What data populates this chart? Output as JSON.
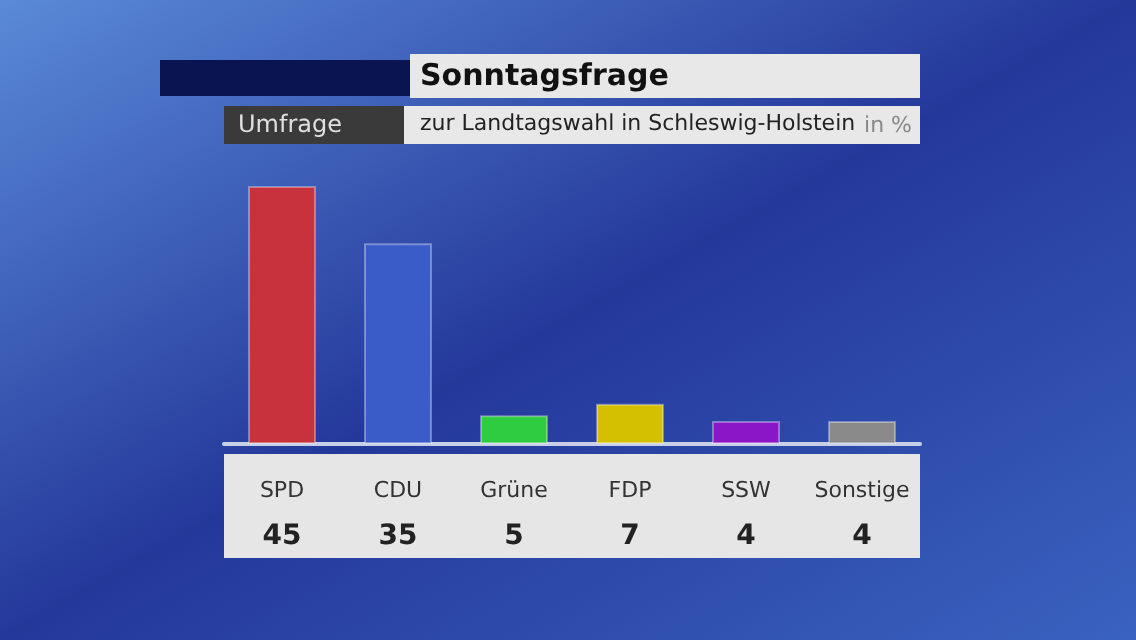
{
  "chart_data": {
    "type": "bar",
    "title": "Sonntagsfrage",
    "subtitle": "zur Landtagswahl in Schleswig-Holstein",
    "ylabel": "in %",
    "annotations": [
      "Umfrage"
    ],
    "categories": [
      "SPD",
      "CDU",
      "Grüne",
      "FDP",
      "SSW",
      "Sonstige"
    ],
    "values": [
      45,
      35,
      5,
      7,
      4,
      4
    ],
    "colors": [
      "#c8323c",
      "#3a5cc8",
      "#2ecc40",
      "#d4c000",
      "#8a16c8",
      "#8a8a8a"
    ],
    "data_labels": true,
    "grid": false
  }
}
